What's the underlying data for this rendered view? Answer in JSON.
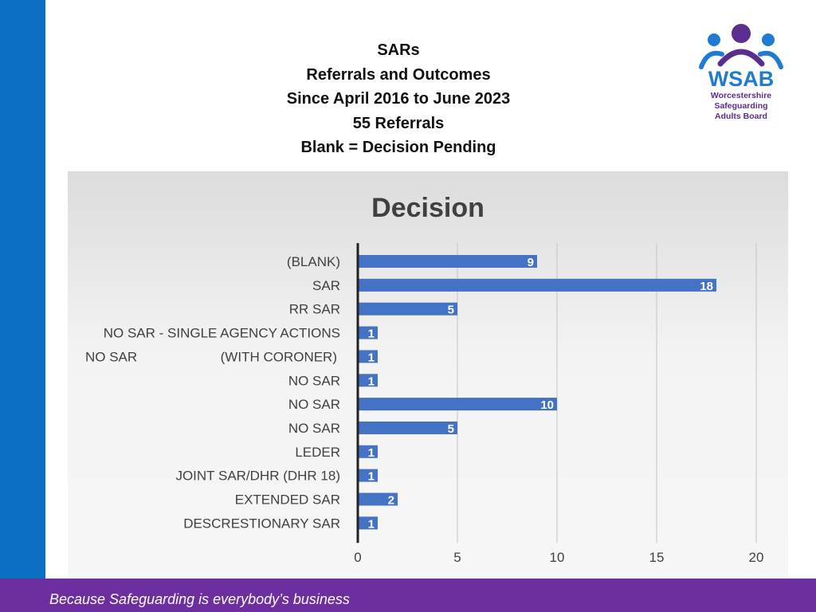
{
  "slide": {
    "title_lines": [
      "SARs",
      "Referrals and Outcomes",
      "Since April 2016 to June 2023",
      "55 Referrals",
      "Blank = Decision Pending"
    ],
    "footer_text": "Because Safeguarding is everybody’s business"
  },
  "logo": {
    "acronym": "WSAB",
    "lines": [
      "Worcestershire",
      "Safeguarding",
      "Adults Board"
    ],
    "colors": {
      "blue": "#1f7bd0",
      "purple": "#5a2d8e"
    }
  },
  "colors": {
    "sidebar": "#0b6fc4",
    "footer": "#6d2f9f",
    "bar": "#4472c4"
  },
  "chart_data": {
    "type": "bar",
    "orientation": "horizontal",
    "title": "Decision",
    "categories": [
      "(BLANK)",
      "SAR",
      "RR SAR",
      "NO SAR - SINGLE AGENCY ACTIONS",
      "NO SAR",
      "NO SAR",
      "NO SAR",
      "NO SAR",
      "LEDER",
      "JOINT SAR/DHR (DHR 18)",
      "EXTENDED SAR",
      "DESCRESTIONARY SAR"
    ],
    "category_annotations": [
      "",
      "",
      "",
      "",
      "(WITH CORONER)",
      "",
      "",
      "",
      "",
      "",
      "",
      ""
    ],
    "values": [
      9,
      18,
      5,
      1,
      1,
      1,
      10,
      5,
      1,
      1,
      2,
      1
    ],
    "xlim": [
      0,
      20
    ],
    "xticks": [
      0,
      5,
      10,
      15,
      20
    ],
    "grid": true,
    "data_labels": true
  }
}
